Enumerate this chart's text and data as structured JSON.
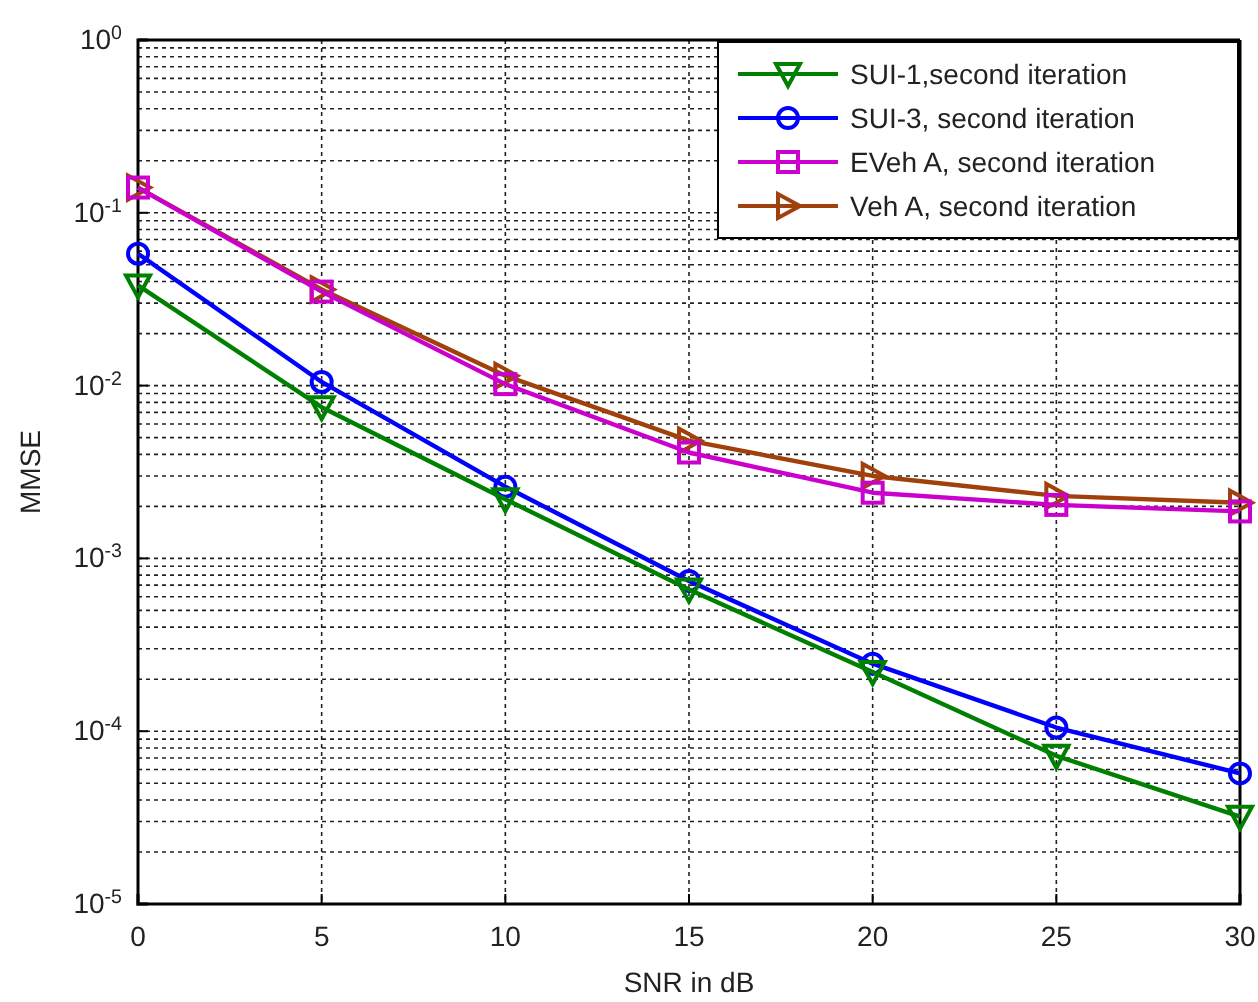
{
  "chart_data": {
    "type": "line",
    "xlabel": "SNR in dB",
    "ylabel": "MMSE",
    "x": [
      0,
      5,
      10,
      15,
      20,
      25,
      30
    ],
    "xlim": [
      0,
      30
    ],
    "xticks": [
      0,
      5,
      10,
      15,
      20,
      25,
      30
    ],
    "ylim": [
      1e-05,
      1
    ],
    "log": true,
    "yticks": [
      {
        "value": 1e-05,
        "label": "10$^{-5}$"
      },
      {
        "value": 0.0001,
        "label": "10$^{-4}$"
      },
      {
        "value": 0.001,
        "label": "10$^{-3}$"
      },
      {
        "value": 0.01,
        "label": "10$^{-2}$"
      },
      {
        "value": 0.1,
        "label": "10$^{-1}$"
      },
      {
        "value": 1,
        "label": "10$^{0}$"
      }
    ],
    "grid": true,
    "legend": "top right",
    "line_style": "solid",
    "series": [
      {
        "name": "SUI-1,second iteration",
        "color": "#008000",
        "marker": "triangle-down",
        "values": [
          0.038,
          0.0075,
          0.0022,
          0.00066,
          0.00022,
          7.2e-05,
          3.2e-05
        ]
      },
      {
        "name": "SUI-3, second iteration",
        "color": "#0000ff",
        "marker": "circle",
        "values": [
          0.058,
          0.0105,
          0.0026,
          0.00074,
          0.000246,
          0.000105,
          5.7e-05
        ]
      },
      {
        "name": "EVeh A, second iteration",
        "color": "#cc00cc",
        "marker": "square",
        "values": [
          0.14,
          0.035,
          0.0102,
          0.0041,
          0.0024,
          0.00204,
          0.00187
        ]
      },
      {
        "name": "Veh A, second iteration",
        "color": "#a0400a",
        "marker": "triangle-right",
        "values": [
          0.14,
          0.036,
          0.0114,
          0.0048,
          0.003,
          0.0023,
          0.0021
        ]
      }
    ]
  }
}
